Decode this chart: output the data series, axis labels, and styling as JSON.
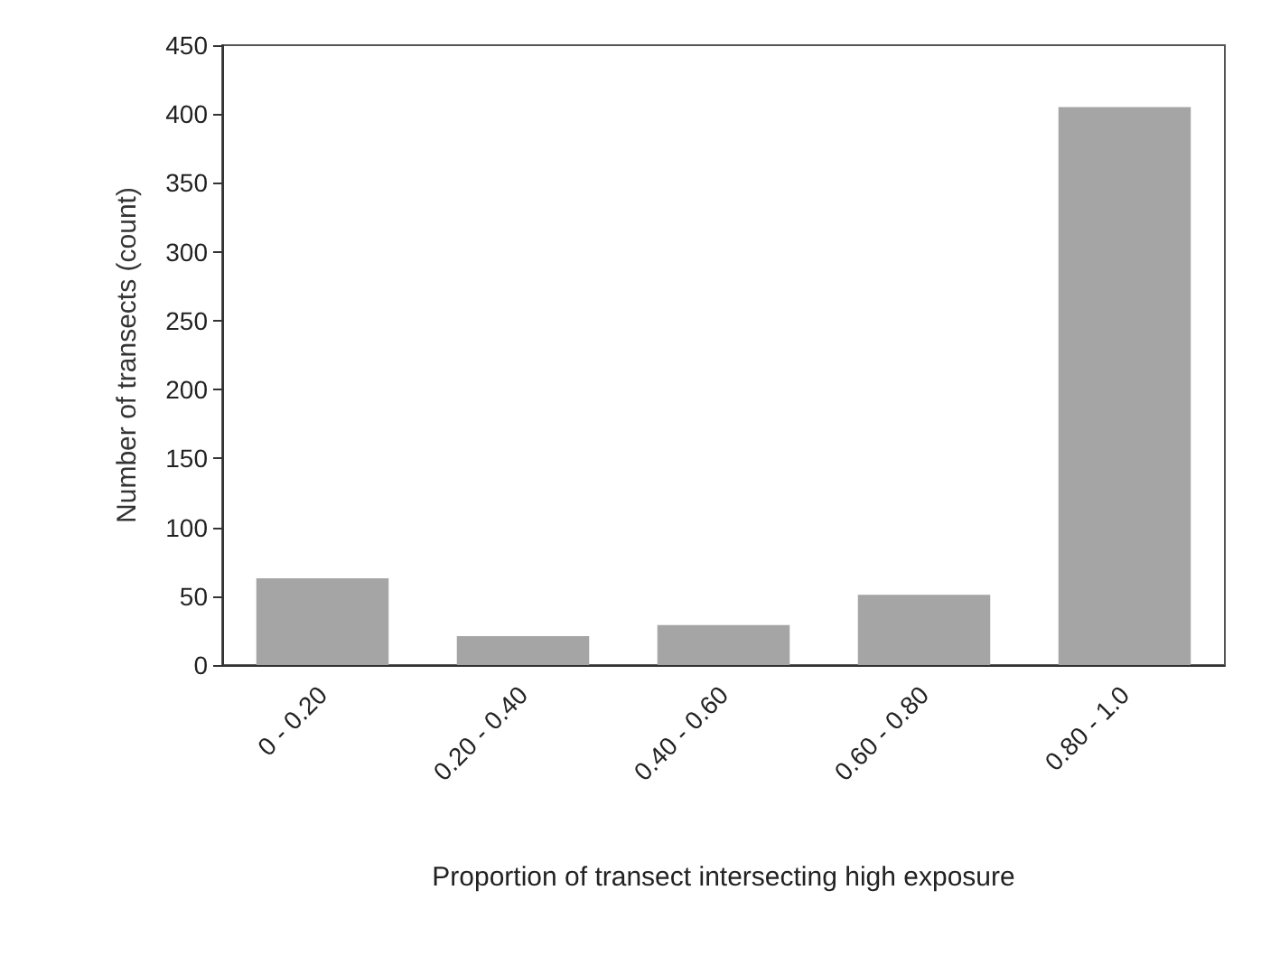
{
  "chart_data": {
    "type": "bar",
    "xlabel": "Proportion of transect intersecting high exposure",
    "ylabel": "Number of transects (count)",
    "categories": [
      "0 - 0.20",
      "0.20 - 0.40",
      "0.40 - 0.60",
      "0.60 - 0.80",
      "0.80 - 1.0"
    ],
    "values": [
      63,
      21,
      29,
      51,
      405
    ],
    "color": "#a5a5a5",
    "ylim": [
      0,
      450
    ],
    "yticks": [
      0,
      50,
      100,
      150,
      200,
      250,
      300,
      350,
      400,
      450
    ],
    "grid": false
  }
}
